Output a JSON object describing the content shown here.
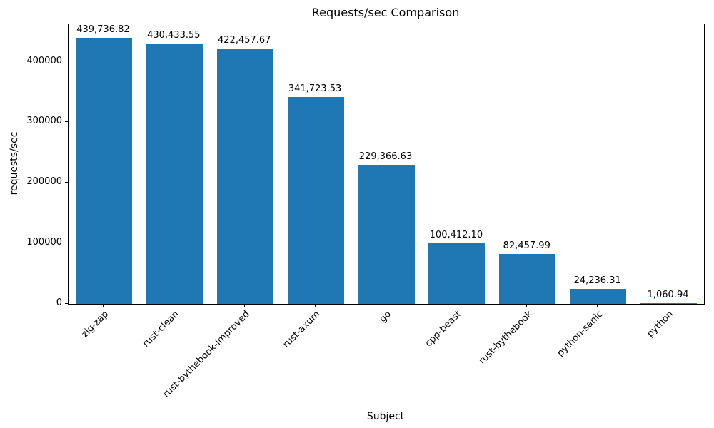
{
  "chart_data": {
    "type": "bar",
    "title": "Requests/sec Comparison",
    "xlabel": "Subject",
    "ylabel": "requests/sec",
    "categories": [
      "zig-zap",
      "rust-clean",
      "rust-bythebook-improved",
      "rust-axum",
      "go",
      "cpp-beast",
      "rust-bythebook",
      "python-sanic",
      "python"
    ],
    "values": [
      439736.82,
      430433.55,
      422457.67,
      341723.53,
      229366.63,
      100412.1,
      82457.99,
      24236.31,
      1060.94
    ],
    "value_labels": [
      "439,736.82",
      "430,433.55",
      "422,457.67",
      "341,723.53",
      "229,366.63",
      "100,412.10",
      "82,457.99",
      "24,236.31",
      "1,060.94"
    ],
    "ylim": [
      0,
      462000
    ],
    "yticks": [
      0,
      100000,
      200000,
      300000,
      400000
    ],
    "ytick_labels": [
      "0",
      "100000",
      "200000",
      "300000",
      "400000"
    ],
    "bar_color": "#1f77b4",
    "grid": false,
    "legend_position": "none"
  }
}
